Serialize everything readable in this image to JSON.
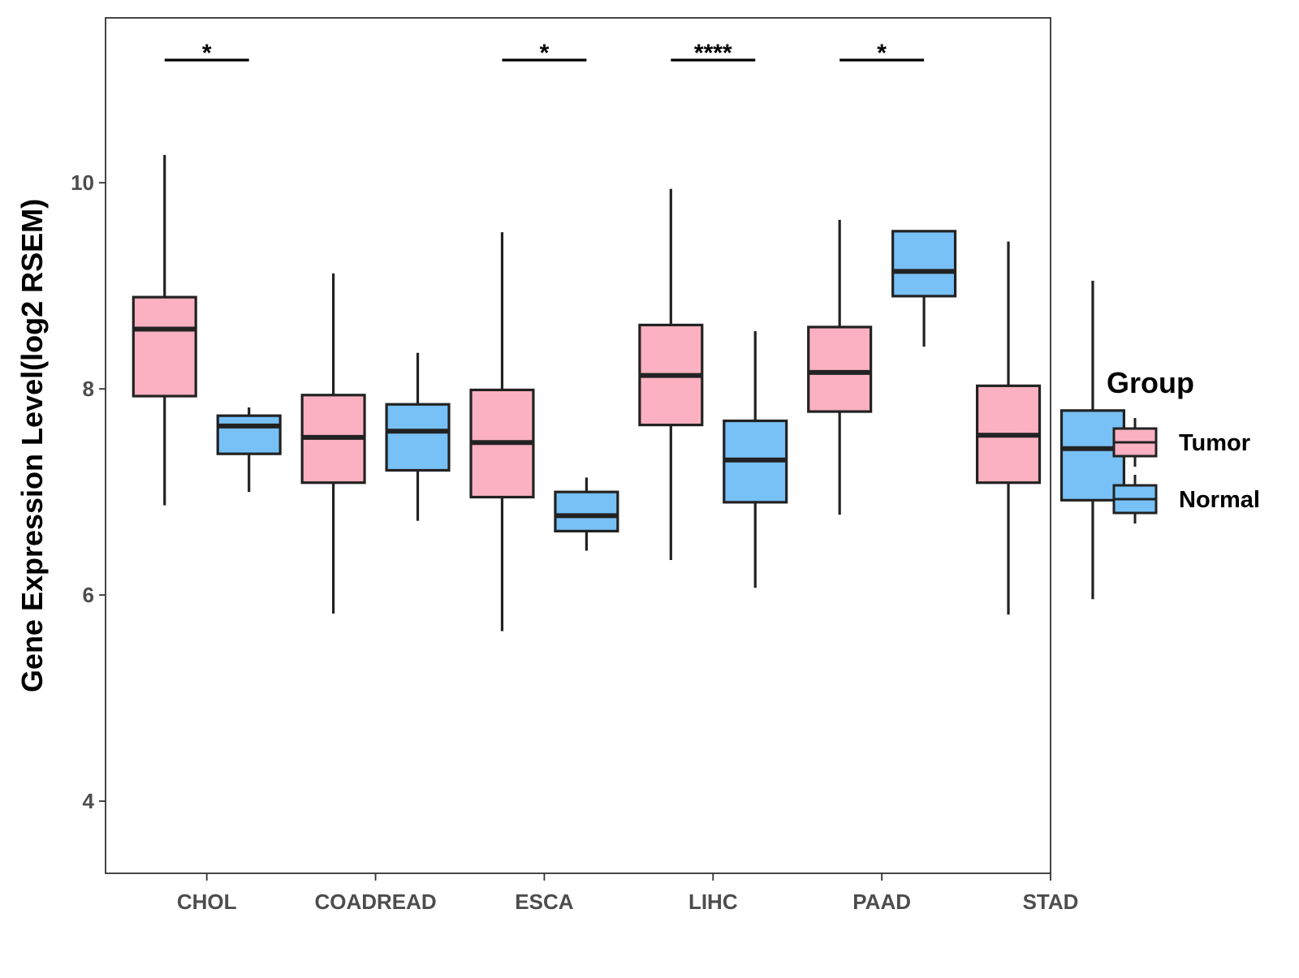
{
  "chart_data": {
    "type": "boxplot",
    "title": "",
    "xlabel": "",
    "ylabel": "Gene Expression Level(log2 RSEM)",
    "ylim": [
      3.3,
      11.6
    ],
    "yticks": [
      4,
      6,
      8,
      10
    ],
    "categories": [
      "CHOL",
      "COADREAD",
      "ESCA",
      "LIHC",
      "PAAD",
      "STAD"
    ],
    "grid": false,
    "legend": {
      "title": "Group",
      "position": "right",
      "entries": [
        "Tumor",
        "Normal"
      ]
    },
    "colors": {
      "Tumor": "#fbb1c1",
      "Normal": "#77c1f7",
      "outline": "#222222"
    },
    "series": [
      {
        "name": "Tumor",
        "boxes": [
          {
            "category": "CHOL",
            "min": 6.87,
            "q1": 7.93,
            "median": 8.58,
            "q3": 8.89,
            "max": 10.27
          },
          {
            "category": "COADREAD",
            "min": 5.82,
            "q1": 7.09,
            "median": 7.53,
            "q3": 7.94,
            "max": 9.12
          },
          {
            "category": "ESCA",
            "min": 5.65,
            "q1": 6.95,
            "median": 7.48,
            "q3": 7.99,
            "max": 9.52
          },
          {
            "category": "LIHC",
            "min": 6.34,
            "q1": 7.65,
            "median": 8.13,
            "q3": 8.62,
            "max": 9.94
          },
          {
            "category": "PAAD",
            "min": 6.78,
            "q1": 7.78,
            "median": 8.16,
            "q3": 8.6,
            "max": 9.64
          },
          {
            "category": "STAD",
            "min": 5.81,
            "q1": 7.09,
            "median": 7.55,
            "q3": 8.03,
            "max": 9.43
          }
        ]
      },
      {
        "name": "Normal",
        "boxes": [
          {
            "category": "CHOL",
            "min": 7.0,
            "q1": 7.37,
            "median": 7.64,
            "q3": 7.74,
            "max": 7.82
          },
          {
            "category": "COADREAD",
            "min": 6.72,
            "q1": 7.21,
            "median": 7.59,
            "q3": 7.85,
            "max": 8.35
          },
          {
            "category": "ESCA",
            "min": 6.43,
            "q1": 6.62,
            "median": 6.77,
            "q3": 7.0,
            "max": 7.14
          },
          {
            "category": "LIHC",
            "min": 6.07,
            "q1": 6.9,
            "median": 7.31,
            "q3": 7.69,
            "max": 8.56
          },
          {
            "category": "PAAD",
            "min": 8.41,
            "q1": 8.9,
            "median": 9.14,
            "q3": 9.53,
            "max": 9.53
          },
          {
            "category": "STAD",
            "min": 5.96,
            "q1": 6.92,
            "median": 7.42,
            "q3": 7.79,
            "max": 9.05
          }
        ]
      }
    ],
    "significance": [
      {
        "category": "CHOL",
        "label": "*"
      },
      {
        "category": "ESCA",
        "label": "*"
      },
      {
        "category": "LIHC",
        "label": "****"
      },
      {
        "category": "PAAD",
        "label": "*"
      }
    ]
  }
}
